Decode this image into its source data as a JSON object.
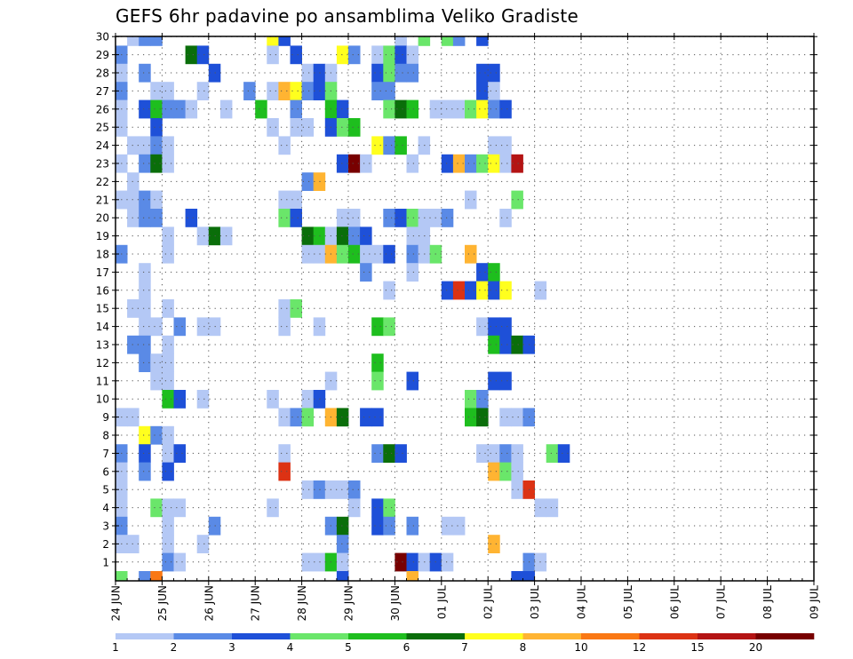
{
  "chart_data": {
    "type": "heatmap",
    "title": "GEFS 6hr padavine po ansamblima Veliko Gradiste",
    "y_categories": [
      "1",
      "2",
      "3",
      "4",
      "5",
      "6",
      "7",
      "8",
      "9",
      "10",
      "11",
      "12",
      "13",
      "14",
      "15",
      "16",
      "17",
      "18",
      "19",
      "20",
      "21",
      "22",
      "23",
      "24",
      "25",
      "26",
      "27",
      "28",
      "29",
      "30"
    ],
    "x_tick_labels": [
      "24 JUN",
      "25 JUN",
      "26 JUN",
      "27 JUN",
      "28 JUN",
      "29 JUN",
      "30 JUN",
      "01 JUL",
      "02 JUL",
      "03 JUL",
      "04 JUL",
      "05 JUL",
      "06 JUL",
      "07 JUL",
      "08 JUL",
      "09 JUL"
    ],
    "x_steps": 60,
    "grid": true,
    "legend_position": "bottom",
    "color_scale": {
      "labels": [
        "1",
        "2",
        "3",
        "4",
        "5",
        "6",
        "7",
        "8",
        "10",
        "12",
        "15",
        "20"
      ],
      "colors": [
        "#b4c8f5",
        "#5a8ae6",
        "#1e50d8",
        "#6ae66a",
        "#1ebe1e",
        "#0a6e0a",
        "#ffff1e",
        "#ffb432",
        "#fa7814",
        "#dc3214",
        "#b41414",
        "#780000"
      ]
    },
    "cells": [
      [
        1,
        30,
        1
      ],
      [
        2,
        30,
        2
      ],
      [
        3,
        30,
        2
      ],
      [
        13,
        30,
        7
      ],
      [
        14,
        30,
        3
      ],
      [
        24,
        30,
        1
      ],
      [
        26,
        30,
        4
      ],
      [
        28,
        30,
        4
      ],
      [
        29,
        30,
        2
      ],
      [
        31,
        30,
        3
      ],
      [
        0,
        29,
        2
      ],
      [
        6,
        29,
        6
      ],
      [
        7,
        29,
        3
      ],
      [
        13,
        29,
        1
      ],
      [
        15,
        29,
        3
      ],
      [
        19,
        29,
        7
      ],
      [
        20,
        29,
        2
      ],
      [
        22,
        29,
        1
      ],
      [
        23,
        29,
        4
      ],
      [
        24,
        29,
        3
      ],
      [
        25,
        29,
        1
      ],
      [
        0,
        28,
        1
      ],
      [
        2,
        28,
        2
      ],
      [
        8,
        28,
        3
      ],
      [
        16,
        28,
        1
      ],
      [
        17,
        28,
        3
      ],
      [
        18,
        28,
        1
      ],
      [
        22,
        28,
        3
      ],
      [
        23,
        28,
        4
      ],
      [
        24,
        28,
        2
      ],
      [
        25,
        28,
        2
      ],
      [
        31,
        28,
        3
      ],
      [
        32,
        28,
        3
      ],
      [
        0,
        27,
        2
      ],
      [
        3,
        27,
        1
      ],
      [
        4,
        27,
        1
      ],
      [
        7,
        27,
        1
      ],
      [
        11,
        27,
        2
      ],
      [
        13,
        27,
        1
      ],
      [
        14,
        27,
        8
      ],
      [
        15,
        27,
        7
      ],
      [
        16,
        27,
        2
      ],
      [
        17,
        27,
        3
      ],
      [
        18,
        27,
        4
      ],
      [
        22,
        27,
        2
      ],
      [
        23,
        27,
        2
      ],
      [
        31,
        27,
        3
      ],
      [
        32,
        27,
        1
      ],
      [
        0,
        26,
        1
      ],
      [
        2,
        26,
        3
      ],
      [
        3,
        26,
        5
      ],
      [
        4,
        26,
        2
      ],
      [
        5,
        26,
        2
      ],
      [
        6,
        26,
        1
      ],
      [
        9,
        26,
        1
      ],
      [
        12,
        26,
        5
      ],
      [
        15,
        26,
        2
      ],
      [
        18,
        26,
        5
      ],
      [
        19,
        26,
        3
      ],
      [
        23,
        26,
        4
      ],
      [
        24,
        26,
        6
      ],
      [
        25,
        26,
        5
      ],
      [
        27,
        26,
        1
      ],
      [
        28,
        26,
        1
      ],
      [
        29,
        26,
        1
      ],
      [
        30,
        26,
        4
      ],
      [
        31,
        26,
        7
      ],
      [
        32,
        26,
        2
      ],
      [
        33,
        26,
        3
      ],
      [
        0,
        25,
        1
      ],
      [
        3,
        25,
        3
      ],
      [
        13,
        25,
        1
      ],
      [
        15,
        25,
        1
      ],
      [
        16,
        25,
        1
      ],
      [
        18,
        25,
        3
      ],
      [
        19,
        25,
        4
      ],
      [
        20,
        25,
        5
      ],
      [
        1,
        24,
        1
      ],
      [
        2,
        24,
        1
      ],
      [
        3,
        24,
        2
      ],
      [
        4,
        24,
        1
      ],
      [
        14,
        24,
        1
      ],
      [
        22,
        24,
        7
      ],
      [
        23,
        24,
        2
      ],
      [
        24,
        24,
        5
      ],
      [
        26,
        24,
        1
      ],
      [
        32,
        24,
        1
      ],
      [
        33,
        24,
        1
      ],
      [
        0,
        23,
        1
      ],
      [
        2,
        23,
        2
      ],
      [
        3,
        23,
        6
      ],
      [
        4,
        23,
        1
      ],
      [
        19,
        23,
        3
      ],
      [
        20,
        23,
        12
      ],
      [
        21,
        23,
        1
      ],
      [
        25,
        23,
        1
      ],
      [
        28,
        23,
        3
      ],
      [
        29,
        23,
        8
      ],
      [
        30,
        23,
        2
      ],
      [
        31,
        23,
        4
      ],
      [
        32,
        23,
        7
      ],
      [
        33,
        23,
        1
      ],
      [
        34,
        23,
        11
      ],
      [
        1,
        22,
        1
      ],
      [
        16,
        22,
        2
      ],
      [
        17,
        22,
        8
      ],
      [
        0,
        21,
        1
      ],
      [
        1,
        21,
        1
      ],
      [
        2,
        21,
        2
      ],
      [
        3,
        21,
        1
      ],
      [
        14,
        21,
        1
      ],
      [
        15,
        21,
        1
      ],
      [
        30,
        21,
        1
      ],
      [
        34,
        21,
        4
      ],
      [
        1,
        20,
        1
      ],
      [
        2,
        20,
        2
      ],
      [
        3,
        20,
        2
      ],
      [
        6,
        20,
        3
      ],
      [
        14,
        20,
        4
      ],
      [
        15,
        20,
        3
      ],
      [
        19,
        20,
        1
      ],
      [
        20,
        20,
        1
      ],
      [
        23,
        20,
        2
      ],
      [
        24,
        20,
        3
      ],
      [
        25,
        20,
        4
      ],
      [
        26,
        20,
        1
      ],
      [
        27,
        20,
        1
      ],
      [
        28,
        20,
        2
      ],
      [
        33,
        20,
        1
      ],
      [
        4,
        19,
        1
      ],
      [
        7,
        19,
        1
      ],
      [
        8,
        19,
        6
      ],
      [
        9,
        19,
        1
      ],
      [
        16,
        19,
        6
      ],
      [
        17,
        19,
        5
      ],
      [
        18,
        19,
        1
      ],
      [
        19,
        19,
        6
      ],
      [
        20,
        19,
        2
      ],
      [
        21,
        19,
        3
      ],
      [
        25,
        19,
        1
      ],
      [
        26,
        19,
        1
      ],
      [
        0,
        18,
        2
      ],
      [
        4,
        18,
        1
      ],
      [
        16,
        18,
        1
      ],
      [
        17,
        18,
        1
      ],
      [
        18,
        18,
        8
      ],
      [
        19,
        18,
        4
      ],
      [
        20,
        18,
        5
      ],
      [
        21,
        18,
        1
      ],
      [
        22,
        18,
        1
      ],
      [
        23,
        18,
        3
      ],
      [
        25,
        18,
        2
      ],
      [
        26,
        18,
        1
      ],
      [
        27,
        18,
        4
      ],
      [
        30,
        18,
        8
      ],
      [
        2,
        17,
        1
      ],
      [
        21,
        17,
        2
      ],
      [
        25,
        17,
        1
      ],
      [
        31,
        17,
        3
      ],
      [
        32,
        17,
        5
      ],
      [
        2,
        16,
        1
      ],
      [
        23,
        16,
        1
      ],
      [
        28,
        16,
        3
      ],
      [
        29,
        16,
        10
      ],
      [
        30,
        16,
        3
      ],
      [
        31,
        16,
        7
      ],
      [
        32,
        16,
        3
      ],
      [
        33,
        16,
        7
      ],
      [
        36,
        16,
        1
      ],
      [
        1,
        15,
        1
      ],
      [
        2,
        15,
        1
      ],
      [
        4,
        15,
        1
      ],
      [
        14,
        15,
        1
      ],
      [
        15,
        15,
        4
      ],
      [
        2,
        14,
        1
      ],
      [
        3,
        14,
        1
      ],
      [
        5,
        14,
        2
      ],
      [
        7,
        14,
        1
      ],
      [
        8,
        14,
        1
      ],
      [
        14,
        14,
        1
      ],
      [
        17,
        14,
        1
      ],
      [
        22,
        14,
        5
      ],
      [
        23,
        14,
        4
      ],
      [
        31,
        14,
        1
      ],
      [
        32,
        14,
        3
      ],
      [
        33,
        14,
        3
      ],
      [
        1,
        13,
        2
      ],
      [
        2,
        13,
        2
      ],
      [
        4,
        13,
        1
      ],
      [
        32,
        13,
        5
      ],
      [
        33,
        13,
        3
      ],
      [
        34,
        13,
        6
      ],
      [
        35,
        13,
        3
      ],
      [
        2,
        12,
        2
      ],
      [
        3,
        12,
        1
      ],
      [
        4,
        12,
        1
      ],
      [
        22,
        12,
        5
      ],
      [
        3,
        11,
        1
      ],
      [
        4,
        11,
        1
      ],
      [
        18,
        11,
        1
      ],
      [
        22,
        11,
        4
      ],
      [
        25,
        11,
        3
      ],
      [
        32,
        11,
        3
      ],
      [
        33,
        11,
        3
      ],
      [
        4,
        10,
        5
      ],
      [
        5,
        10,
        3
      ],
      [
        7,
        10,
        1
      ],
      [
        13,
        10,
        1
      ],
      [
        16,
        10,
        1
      ],
      [
        17,
        10,
        3
      ],
      [
        30,
        10,
        4
      ],
      [
        31,
        10,
        2
      ],
      [
        0,
        9,
        1
      ],
      [
        1,
        9,
        1
      ],
      [
        14,
        9,
        1
      ],
      [
        15,
        9,
        2
      ],
      [
        16,
        9,
        4
      ],
      [
        18,
        9,
        8
      ],
      [
        19,
        9,
        6
      ],
      [
        21,
        9,
        3
      ],
      [
        22,
        9,
        3
      ],
      [
        30,
        9,
        5
      ],
      [
        31,
        9,
        6
      ],
      [
        33,
        9,
        1
      ],
      [
        34,
        9,
        1
      ],
      [
        35,
        9,
        2
      ],
      [
        2,
        8,
        7
      ],
      [
        3,
        8,
        2
      ],
      [
        4,
        8,
        1
      ],
      [
        0,
        7,
        2
      ],
      [
        2,
        7,
        3
      ],
      [
        4,
        7,
        1
      ],
      [
        5,
        7,
        3
      ],
      [
        14,
        7,
        1
      ],
      [
        22,
        7,
        2
      ],
      [
        23,
        7,
        6
      ],
      [
        24,
        7,
        3
      ],
      [
        31,
        7,
        1
      ],
      [
        32,
        7,
        1
      ],
      [
        33,
        7,
        2
      ],
      [
        34,
        7,
        1
      ],
      [
        37,
        7,
        4
      ],
      [
        38,
        7,
        3
      ],
      [
        0,
        6,
        1
      ],
      [
        2,
        6,
        2
      ],
      [
        4,
        6,
        3
      ],
      [
        14,
        6,
        10
      ],
      [
        32,
        6,
        8
      ],
      [
        33,
        6,
        4
      ],
      [
        34,
        6,
        1
      ],
      [
        0,
        5,
        1
      ],
      [
        16,
        5,
        1
      ],
      [
        17,
        5,
        2
      ],
      [
        18,
        5,
        1
      ],
      [
        19,
        5,
        1
      ],
      [
        20,
        5,
        2
      ],
      [
        34,
        5,
        1
      ],
      [
        35,
        5,
        10
      ],
      [
        0,
        4,
        1
      ],
      [
        3,
        4,
        4
      ],
      [
        4,
        4,
        1
      ],
      [
        5,
        4,
        1
      ],
      [
        13,
        4,
        1
      ],
      [
        20,
        4,
        1
      ],
      [
        22,
        4,
        3
      ],
      [
        23,
        4,
        4
      ],
      [
        36,
        4,
        1
      ],
      [
        37,
        4,
        1
      ],
      [
        0,
        3,
        2
      ],
      [
        4,
        3,
        1
      ],
      [
        8,
        3,
        2
      ],
      [
        18,
        3,
        2
      ],
      [
        19,
        3,
        6
      ],
      [
        22,
        3,
        3
      ],
      [
        23,
        3,
        2
      ],
      [
        25,
        3,
        2
      ],
      [
        28,
        3,
        1
      ],
      [
        29,
        3,
        1
      ],
      [
        0,
        2,
        1
      ],
      [
        1,
        2,
        1
      ],
      [
        4,
        2,
        1
      ],
      [
        7,
        2,
        1
      ],
      [
        19,
        2,
        2
      ],
      [
        32,
        2,
        8
      ],
      [
        4,
        1,
        2
      ],
      [
        5,
        1,
        1
      ],
      [
        16,
        1,
        1
      ],
      [
        17,
        1,
        1
      ],
      [
        18,
        1,
        5
      ],
      [
        19,
        1,
        1
      ],
      [
        24,
        1,
        12
      ],
      [
        25,
        1,
        3
      ],
      [
        26,
        1,
        1
      ],
      [
        27,
        1,
        3
      ],
      [
        28,
        1,
        1
      ],
      [
        35,
        1,
        2
      ],
      [
        36,
        1,
        1
      ],
      [
        0,
        0,
        4
      ],
      [
        2,
        0,
        2
      ],
      [
        3,
        0,
        9
      ],
      [
        19,
        0,
        3
      ],
      [
        25,
        0,
        8
      ],
      [
        34,
        0,
        3
      ],
      [
        35,
        0,
        3
      ]
    ]
  }
}
